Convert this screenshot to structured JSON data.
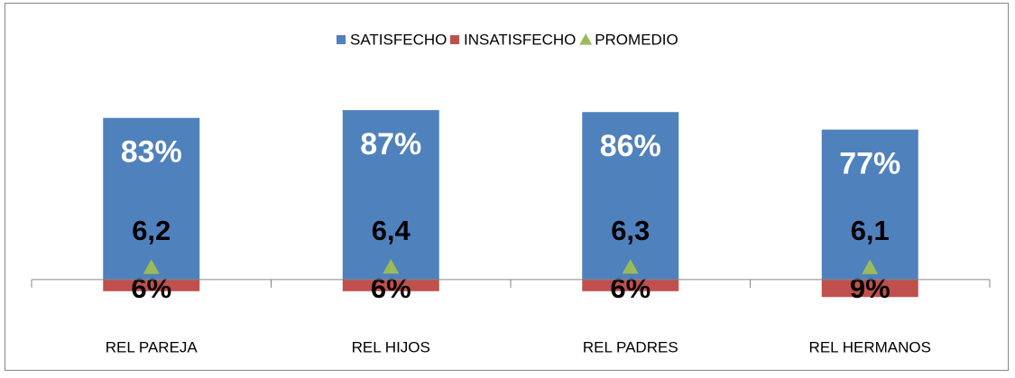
{
  "chart_data": {
    "type": "bar",
    "categories": [
      "REL PAREJA",
      "REL HIJOS",
      "REL PADRES",
      "REL HERMANOS"
    ],
    "series": [
      {
        "name": "SATISFECHO",
        "color": "#4f81bd",
        "values": [
          83,
          87,
          86,
          77
        ],
        "value_labels": [
          "83%",
          "87%",
          "86%",
          "77%"
        ]
      },
      {
        "name": "INSATISFECHO",
        "color": "#c0504d",
        "values": [
          -6,
          -6,
          -6,
          -9
        ],
        "value_labels": [
          "6%",
          "6%",
          "6%",
          "9%"
        ]
      },
      {
        "name": "PROMEDIO",
        "color": "#9bbb59",
        "marker": "triangle",
        "values": [
          6.2,
          6.4,
          6.3,
          6.1
        ],
        "value_labels": [
          "6,2",
          "6,4",
          "6,3",
          "6,1"
        ]
      }
    ],
    "ylim": [
      -20,
      100
    ],
    "legend": "top"
  }
}
